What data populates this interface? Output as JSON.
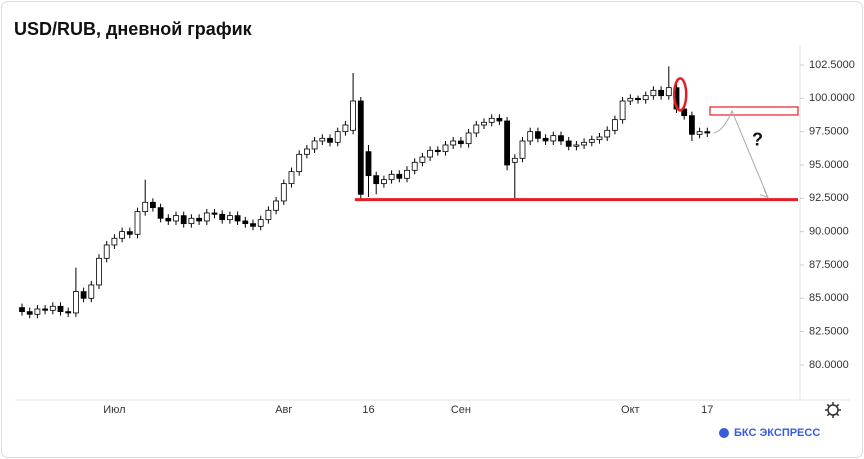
{
  "chart_data": {
    "type": "candlestick",
    "title": "USD/RUB, дневной график",
    "categories": [
      null,
      null,
      null,
      null,
      null,
      null,
      null,
      null,
      null,
      null,
      null,
      null,
      "Июл",
      null,
      null,
      null,
      null,
      null,
      null,
      null,
      null,
      null,
      null,
      null,
      null,
      null,
      null,
      null,
      null,
      null,
      null,
      null,
      null,
      null,
      "Авг",
      null,
      null,
      null,
      null,
      null,
      null,
      null,
      null,
      null,
      null,
      "16",
      null,
      null,
      null,
      null,
      null,
      null,
      null,
      null,
      null,
      null,
      null,
      "Сен",
      null,
      null,
      null,
      null,
      null,
      null,
      null,
      null,
      null,
      null,
      null,
      null,
      null,
      null,
      null,
      null,
      null,
      null,
      null,
      null,
      null,
      "Окт",
      null,
      null,
      null,
      null,
      null,
      null,
      null,
      null,
      null,
      "17"
    ],
    "open": [
      84.3,
      84.0,
      83.8,
      84.2,
      84.1,
      84.4,
      84.0,
      83.9,
      85.5,
      85.0,
      86.0,
      88.0,
      89.0,
      89.5,
      90.0,
      89.8,
      91.5,
      92.2,
      91.8,
      91.0,
      90.8,
      91.2,
      90.6,
      91.0,
      90.8,
      91.4,
      91.3,
      90.9,
      91.2,
      90.8,
      90.6,
      90.4,
      90.9,
      91.6,
      92.3,
      93.6,
      94.5,
      95.8,
      96.2,
      96.8,
      97.0,
      96.7,
      97.5,
      97.6,
      99.8,
      96.0,
      94.2,
      93.6,
      93.9,
      94.3,
      94.0,
      94.6,
      95.2,
      95.6,
      96.1,
      96.0,
      96.5,
      96.8,
      96.6,
      97.4,
      98.0,
      98.2,
      98.5,
      98.3,
      95.2,
      95.5,
      96.8,
      97.5,
      97.0,
      96.8,
      97.2,
      96.8,
      96.4,
      96.5,
      96.7,
      96.9,
      97.1,
      97.6,
      98.4,
      99.8,
      100.0,
      99.9,
      100.2,
      100.6,
      100.2,
      100.8,
      99.2,
      98.7,
      97.3,
      97.5
    ],
    "high": [
      84.6,
      84.3,
      84.5,
      84.5,
      84.7,
      84.7,
      84.3,
      87.3,
      85.8,
      86.3,
      88.3,
      89.3,
      89.8,
      90.3,
      90.3,
      91.8,
      93.9,
      92.5,
      92.1,
      91.3,
      91.5,
      91.5,
      91.3,
      91.3,
      91.7,
      91.7,
      91.6,
      91.5,
      91.5,
      91.1,
      90.9,
      91.2,
      91.9,
      92.6,
      93.9,
      94.8,
      96.1,
      96.5,
      97.1,
      97.3,
      97.3,
      97.8,
      98.3,
      101.9,
      100.1,
      96.5,
      94.5,
      94.2,
      94.6,
      94.6,
      94.9,
      95.5,
      95.9,
      96.4,
      96.4,
      96.8,
      97.1,
      97.1,
      97.7,
      98.3,
      98.5,
      98.8,
      98.8,
      98.6,
      95.8,
      97.1,
      97.8,
      97.8,
      97.3,
      97.5,
      97.5,
      97.1,
      96.8,
      97.0,
      97.2,
      97.4,
      97.9,
      98.7,
      100.1,
      100.3,
      100.2,
      100.5,
      100.9,
      100.9,
      102.4,
      101.1,
      99.5,
      99.0,
      97.8,
      97.8
    ],
    "low": [
      83.7,
      83.5,
      83.5,
      83.8,
      83.8,
      83.7,
      83.6,
      83.6,
      84.7,
      84.7,
      85.7,
      87.7,
      88.7,
      89.2,
      89.5,
      89.5,
      91.2,
      91.5,
      90.7,
      90.5,
      90.5,
      90.3,
      90.3,
      90.5,
      90.5,
      91.0,
      90.6,
      90.6,
      90.5,
      90.3,
      90.1,
      90.1,
      90.6,
      91.3,
      92.0,
      93.3,
      94.2,
      95.5,
      95.9,
      96.5,
      96.4,
      96.4,
      97.2,
      97.3,
      92.4,
      92.6,
      92.8,
      93.3,
      93.6,
      93.7,
      93.7,
      94.3,
      94.9,
      95.3,
      95.7,
      95.7,
      96.2,
      96.3,
      96.3,
      97.1,
      97.7,
      97.9,
      98.0,
      94.6,
      92.5,
      95.2,
      96.5,
      96.7,
      96.5,
      96.5,
      96.5,
      96.1,
      96.1,
      96.2,
      96.4,
      96.6,
      96.8,
      97.3,
      98.1,
      99.5,
      99.6,
      99.6,
      99.9,
      99.9,
      99.9,
      98.9,
      98.4,
      96.8,
      97.0,
      97.1
    ],
    "close": [
      84.0,
      83.8,
      84.2,
      84.1,
      84.4,
      84.0,
      83.9,
      85.5,
      85.0,
      86.0,
      88.0,
      89.0,
      89.5,
      90.0,
      89.8,
      91.5,
      92.2,
      91.8,
      91.0,
      90.8,
      91.2,
      90.6,
      91.0,
      90.8,
      91.4,
      91.3,
      90.9,
      91.2,
      90.8,
      90.6,
      90.4,
      90.9,
      91.6,
      92.3,
      93.6,
      94.5,
      95.8,
      96.2,
      96.8,
      97.0,
      96.7,
      97.5,
      98.0,
      99.8,
      92.8,
      94.2,
      93.6,
      93.9,
      94.3,
      94.0,
      94.6,
      95.2,
      95.6,
      96.1,
      96.0,
      96.5,
      96.8,
      96.6,
      97.4,
      98.0,
      98.2,
      98.5,
      98.3,
      95.0,
      95.5,
      96.8,
      97.5,
      97.0,
      96.8,
      97.2,
      96.8,
      96.4,
      96.5,
      96.7,
      96.9,
      97.1,
      97.6,
      98.4,
      99.8,
      100.0,
      99.9,
      100.2,
      100.6,
      100.2,
      100.8,
      99.2,
      98.7,
      97.3,
      97.5,
      97.4
    ],
    "ylim": [
      77.37,
      104.0
    ],
    "yticks": [
      {
        "value": 80,
        "label": "80.0000"
      },
      {
        "value": 82.5,
        "label": "82.5000"
      },
      {
        "value": 85,
        "label": "85.0000"
      },
      {
        "value": 87.5,
        "label": "87.5000"
      },
      {
        "value": 90,
        "label": "90.0000"
      },
      {
        "value": 92.5,
        "label": "92.5000"
      },
      {
        "value": 95,
        "label": "95.0000"
      },
      {
        "value": 97.5,
        "label": "97.5000"
      },
      {
        "value": 100,
        "label": "100.0000"
      },
      {
        "value": 102.5,
        "label": "102.5000"
      }
    ],
    "up_color": "#ffffff",
    "down_color": "#000000",
    "accent_color": "#e31e24",
    "support_level": 92.4,
    "target_zone": [
      98.75,
      99.35
    ],
    "annotation": "?",
    "brand": "БКС ЭКСПРЕСС"
  }
}
